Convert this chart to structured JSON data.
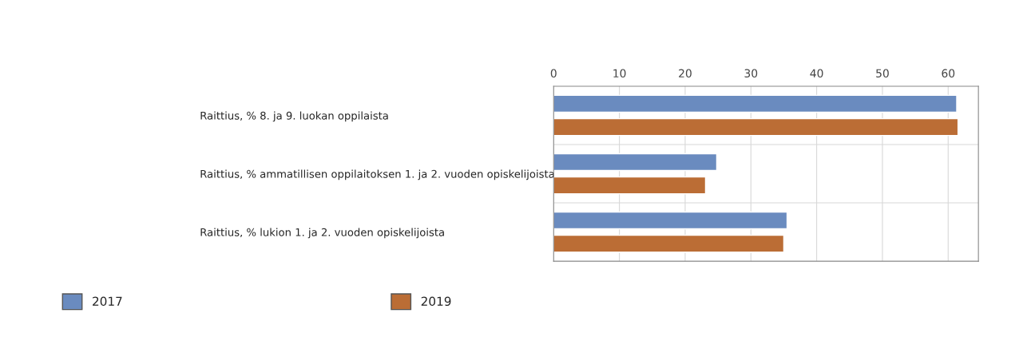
{
  "chart_data": {
    "type": "bar",
    "orientation": "horizontal",
    "categories": [
      "Raittius, % 8. ja 9. luokan oppilaista",
      "Raittius, % ammatillisen oppilaitoksen 1. ja 2. vuoden opiskelijoista",
      "Raittius, % lukion 1. ja 2. vuoden opiskelijoista"
    ],
    "series": [
      {
        "name": "2017",
        "color": "#6a8bbf",
        "values": [
          61.3,
          24.8,
          35.5
        ]
      },
      {
        "name": "2019",
        "color": "#bb6d35",
        "values": [
          61.5,
          23.1,
          35.0
        ]
      }
    ],
    "xlim": [
      0,
      64.6
    ],
    "xticks": [
      0,
      10,
      20,
      30,
      40,
      50,
      60
    ],
    "grid": true,
    "legend": "bottom left"
  }
}
